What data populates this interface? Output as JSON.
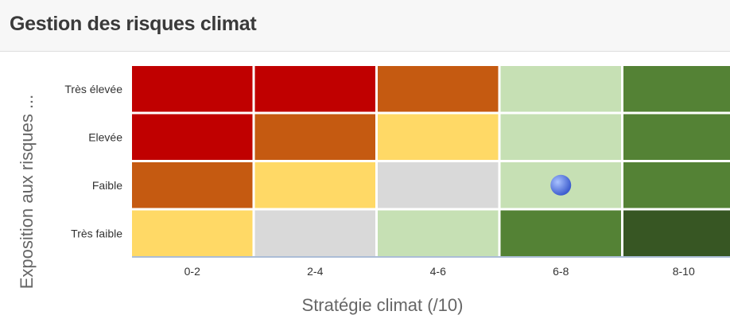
{
  "header": {
    "title": "Gestion des risques climat"
  },
  "chart_data": {
    "type": "heatmap",
    "xlabel": "Stratégie climat (/10)",
    "ylabel": "Exposition aux risques ...",
    "x_categories": [
      "0-2",
      "2-4",
      "4-6",
      "6-8",
      "8-10"
    ],
    "y_categories": [
      "Très élevée",
      "Elevée",
      "Faible",
      "Très faible"
    ],
    "cell_colors": [
      [
        "#c00000",
        "#c00000",
        "#c55a11",
        "#c6e0b4",
        "#548235"
      ],
      [
        "#c00000",
        "#c55a11",
        "#ffd966",
        "#c6e0b4",
        "#548235"
      ],
      [
        "#c55a11",
        "#ffd966",
        "#d9d9d9",
        "#c6e0b4",
        "#548235"
      ],
      [
        "#ffd966",
        "#d9d9d9",
        "#c6e0b4",
        "#548235",
        "#375623"
      ]
    ],
    "points": [
      {
        "x_category": "6-8",
        "y_category": "Faible",
        "color": "#4e6fd6"
      }
    ],
    "grid": false,
    "legend": "none"
  }
}
